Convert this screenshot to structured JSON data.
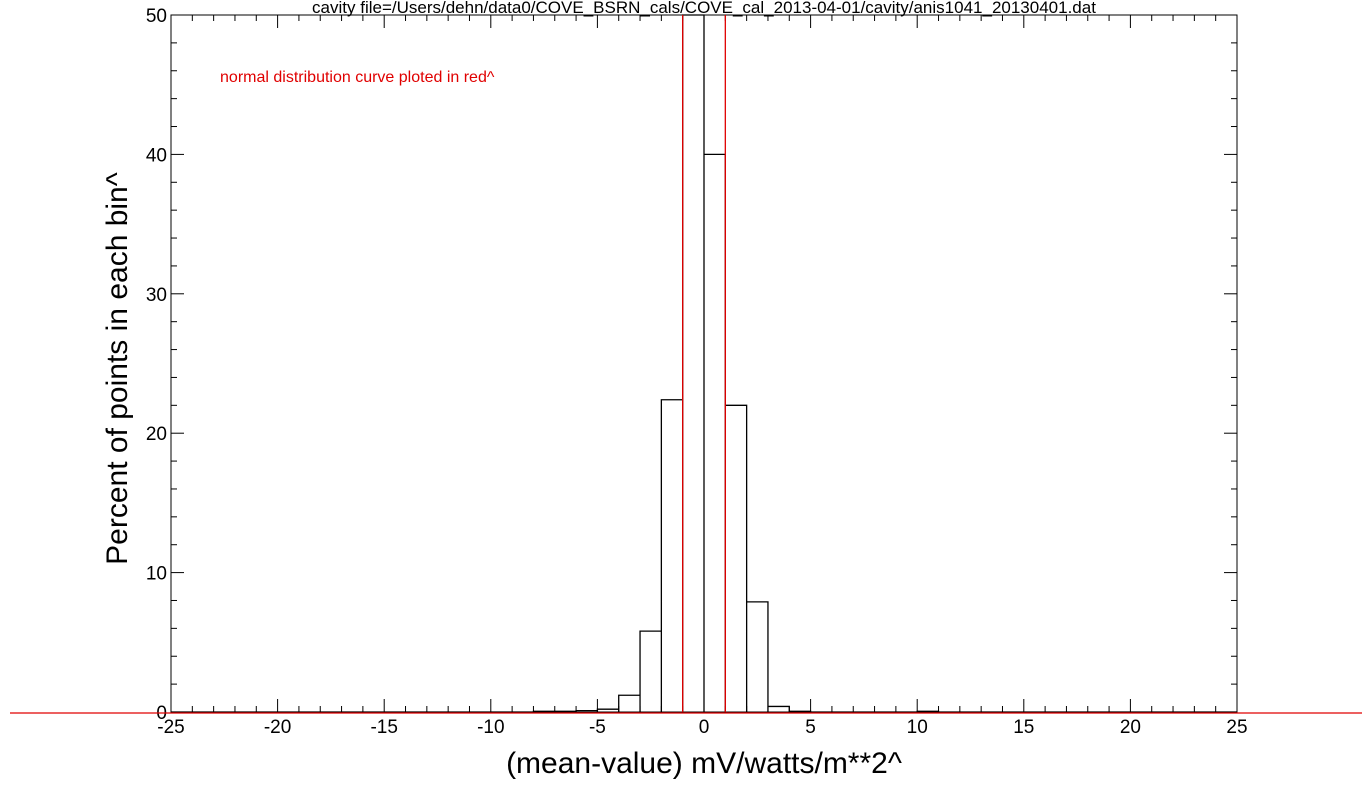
{
  "chart_data": {
    "type": "histogram",
    "title": "cavity file=/Users/dehn/data0/COVE_BSRN_cals/COVE_cal_2013-04-01/cavity/anis1041_20130401.dat",
    "xlabel": "(mean-value) mV/watts/m**2^",
    "ylabel": "Percent of points in each bin^",
    "annotation": "normal distribution curve ploted in red^",
    "xlim": [
      -25,
      25
    ],
    "ylim": [
      0,
      50
    ],
    "x_ticks": [
      -25,
      -20,
      -15,
      -10,
      -5,
      0,
      5,
      10,
      15,
      20,
      25
    ],
    "y_ticks": [
      0,
      10,
      20,
      30,
      40,
      50
    ],
    "bin_width": 1,
    "bins": [
      {
        "x0": -8,
        "x1": -7,
        "value": 0.05
      },
      {
        "x0": -7,
        "x1": -6,
        "value": 0.05
      },
      {
        "x0": -6,
        "x1": -5,
        "value": 0.1
      },
      {
        "x0": -5,
        "x1": -4,
        "value": 0.2
      },
      {
        "x0": -4,
        "x1": -3,
        "value": 1.2
      },
      {
        "x0": -3,
        "x1": -2,
        "value": 5.8
      },
      {
        "x0": -2,
        "x1": -1,
        "value": 22.4
      },
      {
        "x0": -1,
        "x1": 0,
        "value": 50
      },
      {
        "x0": 0,
        "x1": 1,
        "value": 40
      },
      {
        "x0": 1,
        "x1": 2,
        "value": 22
      },
      {
        "x0": 2,
        "x1": 3,
        "value": 7.9
      },
      {
        "x0": 3,
        "x1": 4,
        "value": 0.4
      },
      {
        "x0": 4,
        "x1": 5,
        "value": 0.05
      },
      {
        "x0": 10,
        "x1": 11,
        "value": 0.05
      }
    ],
    "red_vertical_lines_x": [
      -1.0,
      1.0
    ],
    "colors": {
      "histogram": "#000000",
      "normal_curve": "#e00000"
    }
  }
}
